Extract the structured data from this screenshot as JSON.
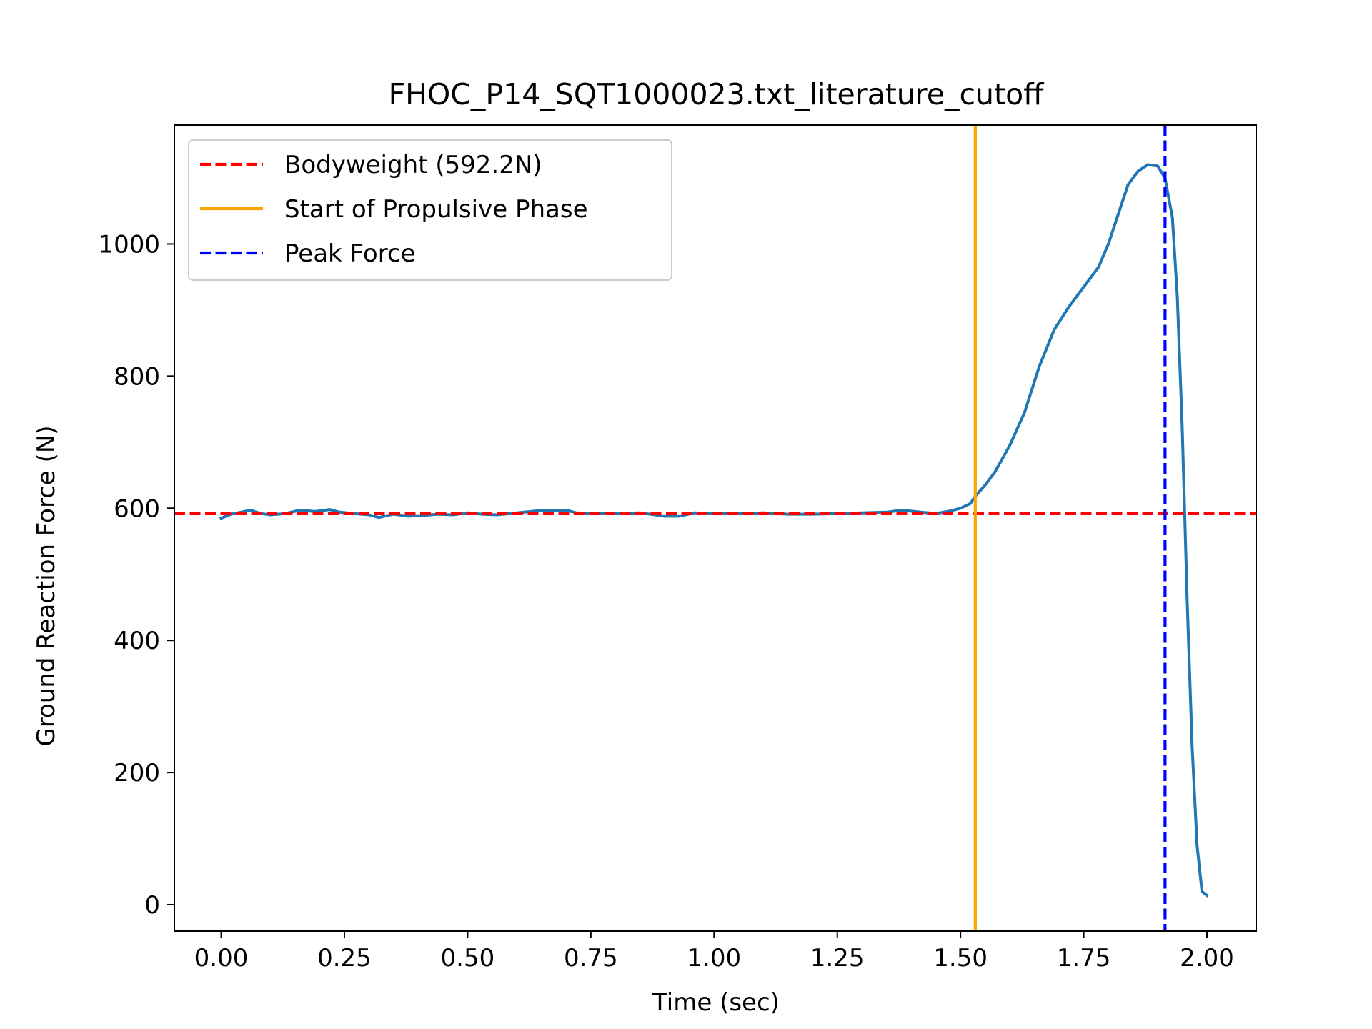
{
  "chart_data": {
    "type": "line",
    "title": "FHOC_P14_SQT1000023.txt_literature_cutoff",
    "xlabel": "Time (sec)",
    "ylabel": "Ground Reaction Force (N)",
    "xlim": [
      -0.095,
      2.1
    ],
    "ylim": [
      -40,
      1180
    ],
    "xticks": [
      0.0,
      0.25,
      0.5,
      0.75,
      1.0,
      1.25,
      1.5,
      1.75,
      2.0
    ],
    "xtick_labels": [
      "0.00",
      "0.25",
      "0.50",
      "0.75",
      "1.00",
      "1.25",
      "1.50",
      "1.75",
      "2.00"
    ],
    "yticks": [
      0,
      200,
      400,
      600,
      800,
      1000
    ],
    "ytick_labels": [
      "0",
      "200",
      "400",
      "600",
      "800",
      "1000"
    ],
    "grid": false,
    "legend_position": "top-left",
    "series": [
      {
        "color": "#1f77b4",
        "x": [
          0.0,
          0.02,
          0.04,
          0.06,
          0.08,
          0.1,
          0.13,
          0.16,
          0.19,
          0.22,
          0.24,
          0.27,
          0.3,
          0.32,
          0.35,
          0.38,
          0.41,
          0.44,
          0.47,
          0.5,
          0.53,
          0.56,
          0.6,
          0.64,
          0.68,
          0.7,
          0.72,
          0.75,
          0.8,
          0.85,
          0.88,
          0.9,
          0.93,
          0.96,
          1.0,
          1.05,
          1.1,
          1.15,
          1.2,
          1.25,
          1.3,
          1.35,
          1.38,
          1.42,
          1.45,
          1.48,
          1.5,
          1.52,
          1.53,
          1.55,
          1.57,
          1.6,
          1.63,
          1.66,
          1.69,
          1.72,
          1.75,
          1.78,
          1.8,
          1.82,
          1.84,
          1.86,
          1.88,
          1.9,
          1.915,
          1.93,
          1.94,
          1.95,
          1.96,
          1.97,
          1.98,
          1.99,
          2.0
        ],
        "y": [
          585,
          591,
          594,
          597,
          592,
          590,
          592,
          597,
          595,
          598,
          594,
          592,
          590,
          586,
          591,
          588,
          589,
          591,
          590,
          593,
          591,
          590,
          593,
          596,
          597,
          597,
          593,
          592,
          592,
          593,
          590,
          588,
          588,
          593,
          592,
          592,
          593,
          591,
          591,
          592,
          593,
          594,
          597,
          594,
          592,
          596,
          600,
          607,
          618,
          635,
          655,
          695,
          745,
          815,
          870,
          905,
          935,
          965,
          1000,
          1045,
          1090,
          1110,
          1120,
          1118,
          1100,
          1040,
          920,
          720,
          460,
          240,
          90,
          20,
          14
        ]
      }
    ],
    "reference_lines": [
      {
        "orientation": "horizontal",
        "value": 592.2,
        "color": "#ff0000",
        "style": "dashed",
        "label": "Bodyweight (592.2N)"
      },
      {
        "orientation": "vertical",
        "value": 1.53,
        "color": "#ffa500",
        "style": "solid",
        "label": "Start of Propulsive Phase"
      },
      {
        "orientation": "vertical",
        "value": 1.915,
        "color": "#0000ff",
        "style": "dashed",
        "label": "Peak Force"
      }
    ]
  }
}
